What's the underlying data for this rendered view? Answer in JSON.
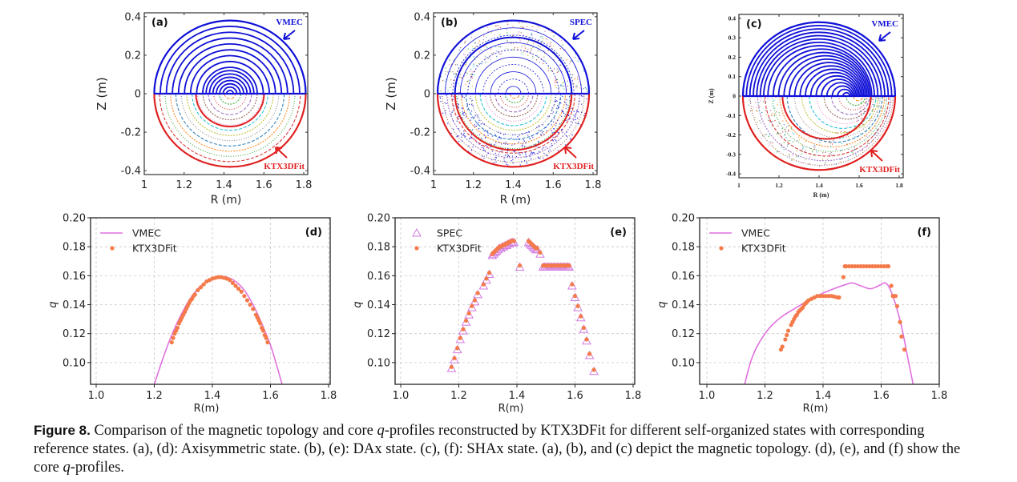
{
  "figure": {
    "caption_label": "Figure 8.",
    "caption_text_1": " Comparison of the magnetic topology and core ",
    "caption_q1": "q",
    "caption_text_2": "-profiles reconstructed by KTX3DFit for different self-organized states with corresponding reference states. (a), (d): Axisymmetric state. (b), (e): DAx state. (c), (f): SHAx state. (a), (b), and (c) depict the magnetic topology. (d), (e), and (f) show the core ",
    "caption_q2": "q",
    "caption_text_3": "-profiles."
  },
  "colors": {
    "reference_blue": "#1010d8",
    "ktx_red": "#e02020",
    "vmec_line": "#e070e0",
    "ktx_dots": "#f47a4a",
    "spec_tri": "#d27ae0",
    "grid": "#c8c8c8"
  },
  "chart_data": [
    {
      "panel": "a",
      "type": "diagram",
      "title": "(a)",
      "xlabel": "R (m)",
      "ylabel": "Z (m)",
      "xlim": [
        1.0,
        1.82
      ],
      "ylim": [
        -0.42,
        0.42
      ],
      "xticks": [
        "1",
        "1.2",
        "1.4",
        "1.6",
        "1.8"
      ],
      "yticks": [
        "0.4",
        "0.2",
        "0",
        "-0.2",
        "-0.4"
      ],
      "upper_label": "VMEC",
      "lower_label": "KTX3DFit",
      "center_R": 1.43,
      "boundary_minor_radius": 0.38
    },
    {
      "panel": "b",
      "type": "diagram",
      "title": "(b)",
      "xlabel": "R (m)",
      "ylabel": "Z (m)",
      "xlim": [
        1.0,
        1.82
      ],
      "ylim": [
        -0.42,
        0.42
      ],
      "xticks": [
        "1",
        "1.2",
        "1.4",
        "1.6",
        "1.8"
      ],
      "yticks": [
        "0.4",
        "0.2",
        "0",
        "-0.2",
        "-0.4"
      ],
      "upper_label": "SPEC",
      "lower_label": "KTX3DFit",
      "center_R": 1.4,
      "boundary_minor_radius": 0.38
    },
    {
      "panel": "c",
      "type": "diagram",
      "title": "(c)",
      "xlabel": "R (m)",
      "ylabel": "Z (m)",
      "xlim": [
        1.0,
        1.82
      ],
      "ylim": [
        -0.42,
        0.42
      ],
      "xticks": [
        "1",
        "1.2",
        "1.4",
        "1.6",
        "1.8"
      ],
      "yticks": [
        "0.4",
        "0.3",
        "0.2",
        "0.1",
        "0",
        "-0.1",
        "-0.2",
        "-0.3",
        "-0.4"
      ],
      "upper_label": "VMEC",
      "lower_label": "KTX3DFit",
      "center_R": 1.4,
      "boundary_minor_radius": 0.38
    },
    {
      "panel": "d",
      "type": "line+scatter",
      "title": "(d)",
      "xlabel": "R(m)",
      "ylabel": "q",
      "xlim": [
        0.98,
        1.82
      ],
      "ylim": [
        0.085,
        0.2
      ],
      "xticks": [
        1.0,
        1.2,
        1.4,
        1.6,
        1.8
      ],
      "yticks": [
        0.1,
        0.12,
        0.14,
        0.16,
        0.18,
        0.2
      ],
      "grid": true,
      "legend": "top-left",
      "series": [
        {
          "name": "VMEC",
          "kind": "line",
          "x": [
            1.2,
            1.23,
            1.26,
            1.29,
            1.32,
            1.35,
            1.38,
            1.41,
            1.43,
            1.45,
            1.48,
            1.51,
            1.54,
            1.57,
            1.6,
            1.62,
            1.64
          ],
          "y": [
            0.085,
            0.103,
            0.119,
            0.132,
            0.143,
            0.151,
            0.156,
            0.159,
            0.1595,
            0.159,
            0.156,
            0.15,
            0.14,
            0.127,
            0.112,
            0.099,
            0.085
          ]
        },
        {
          "name": "KTX3DFit",
          "kind": "dots",
          "x": [
            1.26,
            1.265,
            1.27,
            1.275,
            1.28,
            1.285,
            1.29,
            1.295,
            1.3,
            1.305,
            1.31,
            1.315,
            1.32,
            1.325,
            1.33,
            1.335,
            1.34,
            1.35,
            1.36,
            1.37,
            1.38,
            1.39,
            1.4,
            1.41,
            1.42,
            1.43,
            1.44,
            1.45,
            1.46,
            1.47,
            1.48,
            1.49,
            1.5,
            1.51,
            1.52,
            1.53,
            1.54,
            1.55,
            1.555,
            1.56,
            1.565,
            1.57,
            1.575,
            1.58,
            1.585,
            1.59
          ],
          "y": [
            0.114,
            0.117,
            0.12,
            0.122,
            0.124,
            0.127,
            0.129,
            0.131,
            0.133,
            0.135,
            0.137,
            0.139,
            0.141,
            0.143,
            0.144,
            0.146,
            0.147,
            0.15,
            0.152,
            0.154,
            0.156,
            0.157,
            0.158,
            0.1585,
            0.159,
            0.159,
            0.1585,
            0.158,
            0.157,
            0.155,
            0.153,
            0.151,
            0.149,
            0.146,
            0.143,
            0.14,
            0.137,
            0.133,
            0.131,
            0.129,
            0.127,
            0.124,
            0.122,
            0.119,
            0.117,
            0.114
          ]
        }
      ]
    },
    {
      "panel": "e",
      "type": "scatter",
      "title": "(e)",
      "xlabel": "R(m)",
      "ylabel": "q",
      "xlim": [
        0.98,
        1.82
      ],
      "ylim": [
        0.085,
        0.2
      ],
      "xticks": [
        1.0,
        1.2,
        1.4,
        1.6,
        1.8
      ],
      "yticks": [
        0.1,
        0.12,
        0.14,
        0.16,
        0.18,
        0.2
      ],
      "grid": true,
      "legend": "top-left",
      "series": [
        {
          "name": "SPEC",
          "kind": "triangles",
          "x": [
            1.175,
            1.185,
            1.195,
            1.205,
            1.215,
            1.225,
            1.235,
            1.245,
            1.255,
            1.265,
            1.285,
            1.295,
            1.305,
            1.315,
            1.32,
            1.325,
            1.33,
            1.335,
            1.34,
            1.345,
            1.35,
            1.355,
            1.36,
            1.365,
            1.37,
            1.375,
            1.38,
            1.385,
            1.39,
            1.41,
            1.44,
            1.445,
            1.45,
            1.455,
            1.46,
            1.465,
            1.47,
            1.48,
            1.49,
            1.495,
            1.5,
            1.505,
            1.51,
            1.515,
            1.52,
            1.525,
            1.53,
            1.535,
            1.54,
            1.545,
            1.55,
            1.555,
            1.56,
            1.565,
            1.57,
            1.575,
            1.58,
            1.59,
            1.6,
            1.61,
            1.62,
            1.63,
            1.64,
            1.65,
            1.665
          ],
          "y": [
            0.096,
            0.102,
            0.109,
            0.116,
            0.122,
            0.128,
            0.133,
            0.138,
            0.142,
            0.147,
            0.153,
            0.157,
            0.161,
            0.174,
            0.175,
            0.176,
            0.177,
            0.178,
            0.179,
            0.179,
            0.18,
            0.18,
            0.181,
            0.181,
            0.182,
            0.182,
            0.183,
            0.183,
            0.183,
            0.166,
            0.183,
            0.182,
            0.181,
            0.18,
            0.179,
            0.178,
            0.178,
            0.175,
            0.166,
            0.166,
            0.166,
            0.166,
            0.166,
            0.166,
            0.166,
            0.166,
            0.166,
            0.166,
            0.166,
            0.166,
            0.166,
            0.166,
            0.166,
            0.166,
            0.166,
            0.166,
            0.166,
            0.153,
            0.145,
            0.138,
            0.131,
            0.123,
            0.115,
            0.105,
            0.094
          ]
        },
        {
          "name": "KTX3DFit",
          "kind": "dots",
          "x": [
            1.175,
            1.185,
            1.195,
            1.205,
            1.215,
            1.225,
            1.235,
            1.245,
            1.255,
            1.265,
            1.285,
            1.295,
            1.305,
            1.315,
            1.32,
            1.325,
            1.33,
            1.335,
            1.34,
            1.345,
            1.35,
            1.355,
            1.36,
            1.365,
            1.37,
            1.375,
            1.38,
            1.385,
            1.39,
            1.41,
            1.44,
            1.445,
            1.45,
            1.455,
            1.46,
            1.465,
            1.47,
            1.48,
            1.49,
            1.495,
            1.5,
            1.505,
            1.51,
            1.515,
            1.52,
            1.525,
            1.53,
            1.535,
            1.54,
            1.545,
            1.55,
            1.555,
            1.56,
            1.565,
            1.57,
            1.575,
            1.58,
            1.59,
            1.6,
            1.61,
            1.62,
            1.63,
            1.64,
            1.65,
            1.665
          ],
          "y": [
            0.097,
            0.103,
            0.11,
            0.117,
            0.123,
            0.129,
            0.134,
            0.139,
            0.143,
            0.148,
            0.154,
            0.158,
            0.162,
            0.175,
            0.176,
            0.177,
            0.178,
            0.179,
            0.18,
            0.18,
            0.181,
            0.181,
            0.182,
            0.182,
            0.183,
            0.183,
            0.184,
            0.184,
            0.184,
            0.167,
            0.184,
            0.183,
            0.182,
            0.181,
            0.18,
            0.179,
            0.179,
            0.176,
            0.167,
            0.167,
            0.167,
            0.167,
            0.167,
            0.167,
            0.167,
            0.167,
            0.167,
            0.167,
            0.167,
            0.167,
            0.167,
            0.167,
            0.167,
            0.167,
            0.167,
            0.167,
            0.167,
            0.154,
            0.146,
            0.139,
            0.132,
            0.124,
            0.116,
            0.106,
            0.095
          ]
        }
      ]
    },
    {
      "panel": "f",
      "type": "line+scatter",
      "title": "(f)",
      "xlabel": "R(m)",
      "ylabel": "q",
      "xlim": [
        0.98,
        1.82
      ],
      "ylim": [
        0.085,
        0.2
      ],
      "xticks": [
        1.0,
        1.2,
        1.4,
        1.6,
        1.8
      ],
      "yticks": [
        0.1,
        0.12,
        0.14,
        0.16,
        0.18,
        0.2
      ],
      "grid": true,
      "legend": "top-left",
      "series": [
        {
          "name": "VMEC",
          "kind": "line",
          "x": [
            1.13,
            1.15,
            1.17,
            1.2,
            1.23,
            1.26,
            1.3,
            1.35,
            1.4,
            1.45,
            1.48,
            1.5,
            1.53,
            1.56,
            1.58,
            1.6,
            1.615,
            1.63,
            1.65,
            1.67,
            1.69,
            1.71
          ],
          "y": [
            0.085,
            0.1,
            0.11,
            0.12,
            0.127,
            0.132,
            0.137,
            0.143,
            0.148,
            0.152,
            0.154,
            0.155,
            0.153,
            0.151,
            0.152,
            0.154,
            0.155,
            0.151,
            0.14,
            0.125,
            0.105,
            0.085
          ]
        },
        {
          "name": "KTX3DFit",
          "kind": "dots",
          "x": [
            1.255,
            1.26,
            1.27,
            1.275,
            1.28,
            1.29,
            1.295,
            1.3,
            1.305,
            1.31,
            1.315,
            1.32,
            1.325,
            1.33,
            1.335,
            1.34,
            1.345,
            1.35,
            1.36,
            1.37,
            1.38,
            1.39,
            1.4,
            1.41,
            1.42,
            1.43,
            1.44,
            1.45,
            1.455,
            1.47,
            1.475,
            1.48,
            1.49,
            1.5,
            1.51,
            1.52,
            1.53,
            1.54,
            1.55,
            1.56,
            1.57,
            1.58,
            1.59,
            1.6,
            1.61,
            1.62,
            1.625,
            1.635,
            1.64,
            1.645,
            1.65,
            1.655,
            1.665,
            1.67,
            1.68
          ],
          "y": [
            0.109,
            0.111,
            0.116,
            0.119,
            0.122,
            0.126,
            0.128,
            0.13,
            0.132,
            0.133,
            0.135,
            0.136,
            0.137,
            0.138,
            0.14,
            0.141,
            0.142,
            0.143,
            0.144,
            0.145,
            0.146,
            0.146,
            0.146,
            0.146,
            0.146,
            0.146,
            0.1455,
            0.145,
            0.145,
            0.159,
            0.1665,
            0.1665,
            0.1665,
            0.1665,
            0.1665,
            0.1665,
            0.1665,
            0.1665,
            0.1665,
            0.1665,
            0.1665,
            0.1665,
            0.1665,
            0.1665,
            0.1665,
            0.1665,
            0.1665,
            0.153,
            0.146,
            0.146,
            0.146,
            0.139,
            0.128,
            0.118,
            0.109
          ]
        }
      ]
    }
  ]
}
